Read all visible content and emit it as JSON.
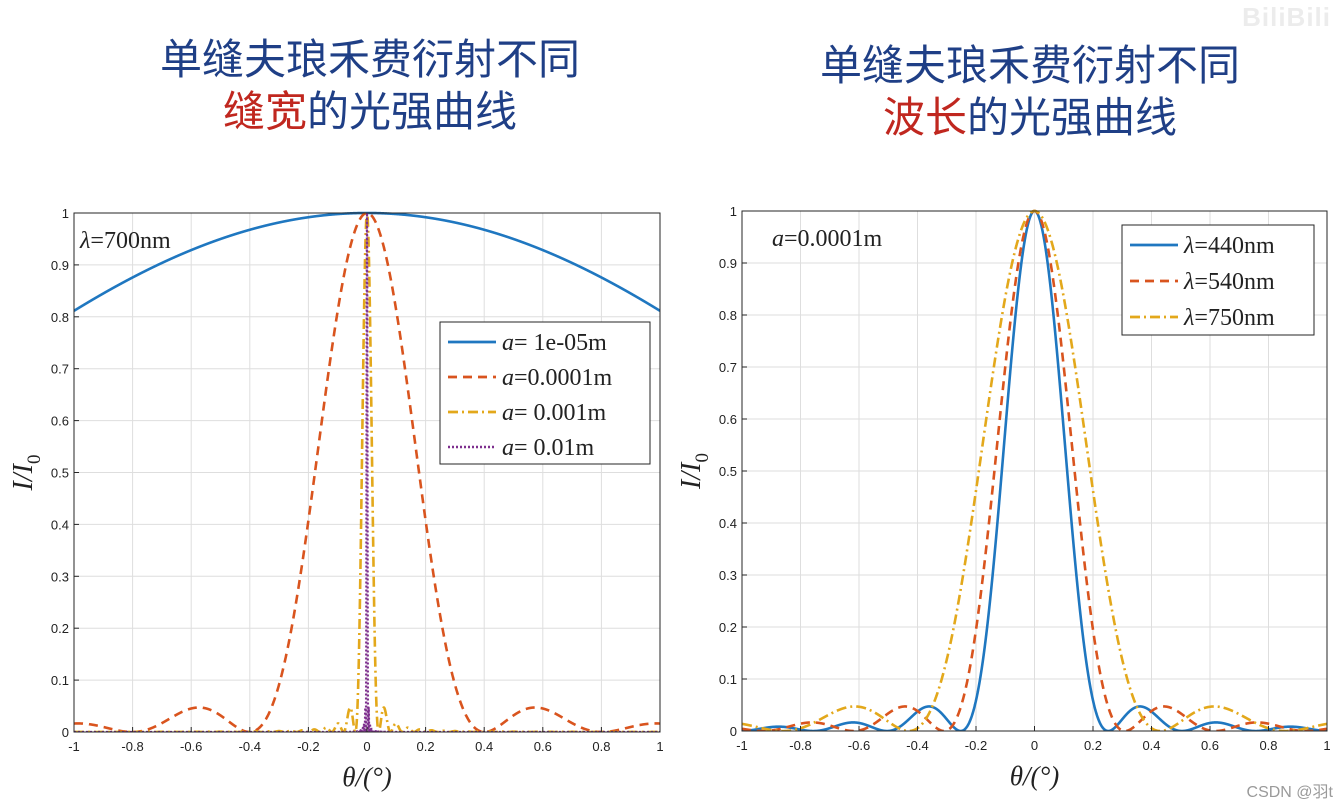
{
  "left_panel": {
    "title_line1": "单缝夫琅禾费衍射不同",
    "title_highlight": "缝宽",
    "title_rest": "的光强曲线"
  },
  "right_panel": {
    "title_line1": "单缝夫琅禾费衍射不同",
    "title_highlight": "波长",
    "title_rest": "的光强曲线"
  },
  "colors": {
    "title": "#1f3f86",
    "highlight": "#c0271f",
    "blue": "#1f77c0",
    "orange": "#d9541e",
    "yellow": "#e3a81b",
    "purple": "#7e2f8e"
  },
  "watermark": "CSDN @羽t",
  "bili_logo": "BiliBili",
  "chart_data": [
    {
      "type": "line",
      "title": "",
      "annotation": {
        "symbol": "λ",
        "text": "=700nm"
      },
      "xlabel": "θ/(°)",
      "ylabel": "I/I",
      "ylabel_sub": "0",
      "xlim": [
        -1,
        1
      ],
      "ylim": [
        0,
        1
      ],
      "xticks": [
        "-1",
        "-0.8",
        "-0.6",
        "-0.4",
        "-0.2",
        "0",
        "0.2",
        "0.4",
        "0.6",
        "0.8",
        "1"
      ],
      "yticks": [
        "0",
        "0.1",
        "0.2",
        "0.3",
        "0.4",
        "0.5",
        "0.6",
        "0.7",
        "0.8",
        "0.9",
        "1"
      ],
      "grid": true,
      "legend_position": "right",
      "wavelength_nm": 700,
      "series": [
        {
          "name": "a= 1e-05m",
          "var": "a",
          "label": "= 1e-05m",
          "slit_m": 1e-05,
          "wavelength_m": 7e-07,
          "style": "solid",
          "color": "#1f77c0"
        },
        {
          "name": "a=0.0001m",
          "var": "a",
          "label": "=0.0001m",
          "slit_m": 0.0001,
          "wavelength_m": 7e-07,
          "style": "dashed",
          "color": "#d9541e"
        },
        {
          "name": "a= 0.001m",
          "var": "a",
          "label": "= 0.001m",
          "slit_m": 0.001,
          "wavelength_m": 7e-07,
          "style": "dashdot",
          "color": "#e3a81b"
        },
        {
          "name": "a=  0.01m",
          "var": "a",
          "label": "=  0.01m",
          "slit_m": 0.01,
          "wavelength_m": 7e-07,
          "style": "dotted",
          "color": "#7e2f8e"
        }
      ]
    },
    {
      "type": "line",
      "title": "",
      "annotation": {
        "symbol": "a",
        "text": "=0.0001m"
      },
      "xlabel": "θ/(°)",
      "ylabel": "I/I",
      "ylabel_sub": "0",
      "xlim": [
        -1,
        1
      ],
      "ylim": [
        0,
        1
      ],
      "xticks": [
        "-1",
        "-0.8",
        "-0.6",
        "-0.4",
        "-0.2",
        "0",
        "0.2",
        "0.4",
        "0.6",
        "0.8",
        "1"
      ],
      "yticks": [
        "0",
        "0.1",
        "0.2",
        "0.3",
        "0.4",
        "0.5",
        "0.6",
        "0.7",
        "0.8",
        "0.9",
        "1"
      ],
      "grid": true,
      "legend_position": "top-right",
      "slit_width_m": 0.0001,
      "series": [
        {
          "name": "λ=440nm",
          "var": "λ",
          "label": "=440nm",
          "slit_m": 0.0001,
          "wavelength_m": 4.4e-07,
          "style": "solid",
          "color": "#1f77c0"
        },
        {
          "name": "λ=540nm",
          "var": "λ",
          "label": "=540nm",
          "slit_m": 0.0001,
          "wavelength_m": 5.4e-07,
          "style": "dashed",
          "color": "#d9541e"
        },
        {
          "name": "λ=750nm",
          "var": "λ",
          "label": "=750nm",
          "slit_m": 0.0001,
          "wavelength_m": 7.5e-07,
          "style": "dashdot",
          "color": "#e3a81b"
        }
      ]
    }
  ]
}
